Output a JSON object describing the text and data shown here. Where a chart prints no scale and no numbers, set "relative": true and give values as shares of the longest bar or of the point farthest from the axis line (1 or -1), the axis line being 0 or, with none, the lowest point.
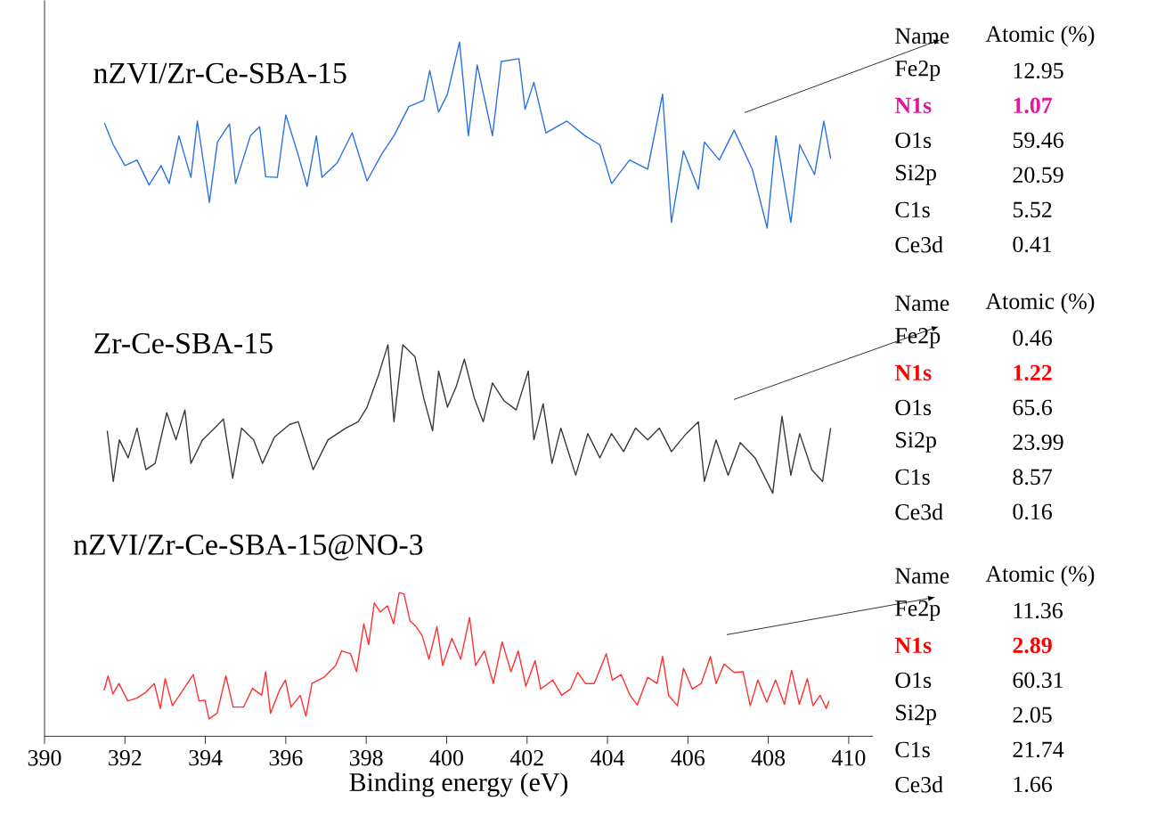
{
  "chart_data": {
    "type": "line",
    "relative": true,
    "xlabel": "Binding energy (eV)",
    "xlim": [
      390,
      410.6
    ],
    "xticks": [
      390,
      392,
      394,
      396,
      398,
      400,
      402,
      404,
      406,
      408,
      410
    ],
    "tick_labels": "x",
    "grid": false,
    "series": [
      {
        "name": "nZVI/Zr-Ce-SBA-15",
        "color": "#2a72e0",
        "x": [
          391.49,
          391.71,
          392.0,
          392.3,
          392.6,
          392.9,
          393.1,
          393.34,
          393.64,
          393.8,
          394.1,
          394.3,
          394.6,
          394.75,
          395.12,
          395.35,
          395.5,
          395.79,
          396.0,
          396.3,
          396.53,
          396.76,
          396.9,
          397.28,
          397.65,
          398.02,
          398.39,
          398.69,
          399.06,
          399.43,
          399.58,
          399.8,
          400.02,
          400.32,
          400.54,
          400.76,
          401.14,
          401.36,
          401.8,
          401.95,
          402.17,
          402.47,
          402.99,
          403.44,
          403.81,
          404.1,
          404.55,
          405.0,
          405.37,
          405.59,
          405.89,
          406.26,
          406.41,
          406.78,
          407.15,
          407.6,
          407.97,
          408.19,
          408.56,
          408.78,
          409.15,
          409.38,
          409.55
        ],
        "values": [
          0.883,
          0.852,
          0.822,
          0.83,
          0.794,
          0.822,
          0.796,
          0.865,
          0.805,
          0.886,
          0.769,
          0.856,
          0.882,
          0.796,
          0.865,
          0.878,
          0.806,
          0.805,
          0.895,
          0.839,
          0.792,
          0.865,
          0.805,
          0.826,
          0.869,
          0.8,
          0.839,
          0.865,
          0.907,
          0.916,
          0.959,
          0.899,
          0.925,
          1.0,
          0.865,
          0.967,
          0.865,
          0.972,
          0.976,
          0.903,
          0.942,
          0.869,
          0.886,
          0.865,
          0.852,
          0.796,
          0.83,
          0.817,
          0.925,
          0.74,
          0.843,
          0.788,
          0.856,
          0.83,
          0.873,
          0.817,
          0.732,
          0.865,
          0.74,
          0.852,
          0.809,
          0.886,
          0.832
        ]
      },
      {
        "name": "Zr-Ce-SBA-15",
        "color": "#3a3a3a",
        "x": [
          391.56,
          391.71,
          391.86,
          392.08,
          392.3,
          392.52,
          392.75,
          393.04,
          393.27,
          393.49,
          393.64,
          393.93,
          394.23,
          394.45,
          394.68,
          394.9,
          395.2,
          395.42,
          395.72,
          396.09,
          396.31,
          396.68,
          397.05,
          397.5,
          397.8,
          398.02,
          398.31,
          398.54,
          398.69,
          398.91,
          399.21,
          399.43,
          399.65,
          399.8,
          400.02,
          400.24,
          400.44,
          400.69,
          400.91,
          401.14,
          401.43,
          401.73,
          402.03,
          402.17,
          402.4,
          402.62,
          402.84,
          403.21,
          403.51,
          403.81,
          404.1,
          404.4,
          404.7,
          405.0,
          405.29,
          405.59,
          405.96,
          406.26,
          406.41,
          406.7,
          407.0,
          407.3,
          407.67,
          408.11,
          408.34,
          408.56,
          408.78,
          409.08,
          409.35,
          409.55
        ],
        "values": [
          0.44,
          0.367,
          0.427,
          0.401,
          0.444,
          0.384,
          0.393,
          0.466,
          0.427,
          0.47,
          0.393,
          0.427,
          0.444,
          0.457,
          0.372,
          0.444,
          0.427,
          0.393,
          0.431,
          0.449,
          0.453,
          0.384,
          0.427,
          0.444,
          0.453,
          0.474,
          0.521,
          0.564,
          0.453,
          0.564,
          0.547,
          0.487,
          0.44,
          0.526,
          0.474,
          0.504,
          0.543,
          0.487,
          0.453,
          0.509,
          0.483,
          0.47,
          0.526,
          0.427,
          0.479,
          0.393,
          0.444,
          0.376,
          0.436,
          0.401,
          0.436,
          0.41,
          0.444,
          0.427,
          0.444,
          0.41,
          0.436,
          0.453,
          0.367,
          0.427,
          0.376,
          0.423,
          0.401,
          0.35,
          0.461,
          0.376,
          0.436,
          0.384,
          0.367,
          0.444
        ]
      },
      {
        "name": "nZVI/Zr-Ce-SBA-15@NO-3",
        "color": "#ff3030",
        "x": [
          391.48,
          391.58,
          391.7,
          391.85,
          392.07,
          392.29,
          392.51,
          392.73,
          392.88,
          393.0,
          393.18,
          393.4,
          393.7,
          393.84,
          393.99,
          394.09,
          394.29,
          394.51,
          394.69,
          394.95,
          395.17,
          395.4,
          395.5,
          395.62,
          395.84,
          395.99,
          396.13,
          396.36,
          396.5,
          396.65,
          396.95,
          397.24,
          397.39,
          397.61,
          397.76,
          397.94,
          398.06,
          398.2,
          398.35,
          398.53,
          398.68,
          398.82,
          398.94,
          399.09,
          399.24,
          399.39,
          399.56,
          399.76,
          399.9,
          400.13,
          400.35,
          400.57,
          400.72,
          400.94,
          401.16,
          401.38,
          401.6,
          401.78,
          401.97,
          402.2,
          402.34,
          402.64,
          402.86,
          403.08,
          403.26,
          403.45,
          403.67,
          403.97,
          404.12,
          404.34,
          404.56,
          404.74,
          405.0,
          405.23,
          405.37,
          405.52,
          405.74,
          405.89,
          406.11,
          406.33,
          406.56,
          406.7,
          406.9,
          407.15,
          407.37,
          407.55,
          407.74,
          407.96,
          408.18,
          408.4,
          408.58,
          408.77,
          408.97,
          409.11,
          409.29,
          409.44,
          409.51
        ],
        "values": [
          0.066,
          0.087,
          0.061,
          0.076,
          0.051,
          0.055,
          0.063,
          0.076,
          0.04,
          0.083,
          0.044,
          0.063,
          0.089,
          0.051,
          0.052,
          0.025,
          0.033,
          0.087,
          0.042,
          0.042,
          0.069,
          0.059,
          0.093,
          0.033,
          0.066,
          0.081,
          0.042,
          0.059,
          0.029,
          0.076,
          0.085,
          0.102,
          0.123,
          0.119,
          0.093,
          0.162,
          0.132,
          0.192,
          0.179,
          0.188,
          0.162,
          0.207,
          0.205,
          0.166,
          0.158,
          0.145,
          0.111,
          0.158,
          0.102,
          0.141,
          0.111,
          0.171,
          0.102,
          0.123,
          0.076,
          0.136,
          0.093,
          0.123,
          0.072,
          0.109,
          0.068,
          0.081,
          0.059,
          0.068,
          0.092,
          0.076,
          0.076,
          0.119,
          0.081,
          0.089,
          0.059,
          0.045,
          0.085,
          0.076,
          0.115,
          0.059,
          0.044,
          0.098,
          0.068,
          0.076,
          0.115,
          0.076,
          0.104,
          0.092,
          0.093,
          0.044,
          0.081,
          0.049,
          0.081,
          0.046,
          0.095,
          0.046,
          0.083,
          0.044,
          0.059,
          0.04,
          0.051
        ]
      }
    ],
    "annotations": [
      "Name",
      "Atomic (%)",
      "Fe2p",
      "12.95",
      "N1s",
      "1.07",
      "O1s",
      "59.46",
      "Si2p",
      "20.59",
      "C1s",
      "5.52",
      "Ce3d",
      "0.41",
      "Name",
      "Atomic (%)",
      "Fe2p",
      "0.46",
      "N1s",
      "1.22",
      "O1s",
      "65.6",
      "Si2p",
      "23.99",
      "C1s",
      "8.57",
      "Ce3d",
      "0.16",
      "Name",
      "Atomic (%)",
      "Fe2p",
      "11.36",
      "N1s",
      "2.89",
      "O1s",
      "60.31",
      "Si2p",
      "2.05",
      "C1s",
      "21.74",
      "Ce3d",
      "1.66"
    ]
  }
}
